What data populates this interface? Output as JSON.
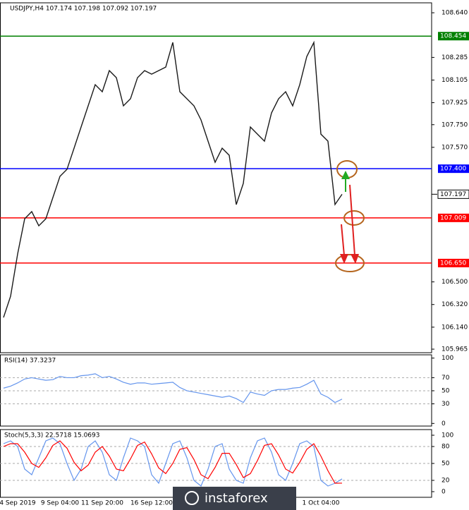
{
  "chart_data": [
    {
      "type": "line",
      "title": "USDJPY,H4  107.174 107.198 107.092 107.197",
      "categories": [
        null,
        null,
        "4 Sep 2019",
        null,
        null,
        null,
        null,
        null,
        "9 Sep 04:00",
        null,
        null,
        null,
        null,
        null,
        "11 Sep 20:00",
        null,
        null,
        null,
        null,
        null,
        null,
        "16 Sep 12:00",
        null,
        null,
        null,
        null,
        null,
        null,
        null,
        null,
        null,
        null,
        null,
        null,
        null,
        null,
        null,
        null,
        null,
        null,
        null,
        null,
        null,
        null,
        null,
        "1 Oct 04:00",
        null,
        null,
        null
      ],
      "series": [
        {
          "name": "USDJPY",
          "color": "#1a1a1a",
          "values": [
            106.217,
            106.386,
            106.722,
            107.002,
            107.059,
            106.946,
            107.002,
            107.171,
            107.339,
            107.395,
            107.563,
            107.732,
            107.9,
            108.068,
            108.012,
            108.18,
            108.124,
            107.9,
            107.956,
            108.124,
            108.18,
            108.152,
            108.18,
            108.208,
            108.404,
            108.012,
            107.956,
            107.9,
            107.788,
            107.619,
            107.451,
            107.563,
            107.507,
            107.115,
            107.283,
            107.732,
            107.675,
            107.619,
            107.844,
            107.956,
            108.012,
            107.9,
            108.068,
            108.292,
            108.404,
            107.675,
            107.619,
            107.115,
            107.197
          ]
        }
      ],
      "ylim": [
        105.937,
        108.719
      ],
      "yticks": [
        {
          "value": 108.64,
          "label": "108.640"
        },
        108.285,
        108.105,
        107.925,
        {
          "value": 107.75,
          "label": "107.750"
        },
        {
          "value": 107.57,
          "label": "107.570"
        },
        {
          "value": 106.5,
          "label": "106.500"
        },
        {
          "value": 106.32,
          "label": "106.320"
        },
        {
          "value": 106.14,
          "label": "106.140"
        },
        105.965
      ],
      "hlines": [
        {
          "value": 108.454,
          "label": "108.454",
          "color": "#008000"
        },
        {
          "value": 107.4,
          "label": "107.400",
          "color": "#0000ff"
        },
        {
          "value": 107.009,
          "label": "107.009",
          "color": "#ff0000"
        },
        {
          "value": 106.65,
          "label": "106.650",
          "color": "#ff0000"
        }
      ],
      "last": {
        "value": 107.197,
        "label": "107.197"
      }
    },
    {
      "type": "line",
      "title": "RSI(14) 37.3237",
      "series": [
        {
          "name": "RSI",
          "color": "#6495ed",
          "values": [
            54,
            57,
            62,
            68,
            70,
            68,
            66,
            67,
            72,
            70,
            70,
            73,
            74,
            76,
            70,
            72,
            68,
            63,
            60,
            62,
            62,
            60,
            61,
            62,
            63,
            55,
            50,
            48,
            46,
            44,
            42,
            40,
            42,
            38,
            32,
            48,
            45,
            43,
            50,
            52,
            52,
            54,
            55,
            60,
            66,
            45,
            40,
            32,
            37.3
          ]
        }
      ],
      "ylim": [
        -4,
        105
      ],
      "yticks": [
        100,
        70,
        50,
        30,
        0
      ],
      "levels": [
        70,
        50,
        30
      ]
    },
    {
      "type": "line",
      "title": "Stoch(5,3,3) 22.5718 15.0693",
      "series": [
        {
          "name": "Main",
          "color": "#6495ed",
          "values": [
            85,
            90,
            80,
            40,
            30,
            60,
            90,
            95,
            85,
            50,
            20,
            40,
            80,
            90,
            70,
            30,
            20,
            60,
            95,
            90,
            80,
            30,
            15,
            50,
            85,
            90,
            60,
            20,
            10,
            40,
            80,
            85,
            40,
            20,
            15,
            60,
            90,
            95,
            70,
            30,
            20,
            50,
            85,
            90,
            80,
            20,
            10,
            15,
            22.57
          ]
        },
        {
          "name": "Signal",
          "color": "#ff0000",
          "values": [
            80,
            85,
            85,
            70,
            50,
            43,
            60,
            82,
            90,
            77,
            52,
            37,
            47,
            70,
            80,
            63,
            40,
            37,
            58,
            82,
            88,
            67,
            42,
            32,
            50,
            75,
            78,
            57,
            30,
            23,
            43,
            68,
            68,
            48,
            25,
            32,
            55,
            82,
            85,
            65,
            40,
            33,
            52,
            75,
            85,
            63,
            37,
            15,
            15.07
          ]
        }
      ],
      "ylim": [
        -10,
        110
      ],
      "yticks": [
        100,
        80,
        50,
        20,
        0
      ],
      "levels": [
        80,
        50,
        20
      ]
    }
  ],
  "watermark": "instaforex"
}
